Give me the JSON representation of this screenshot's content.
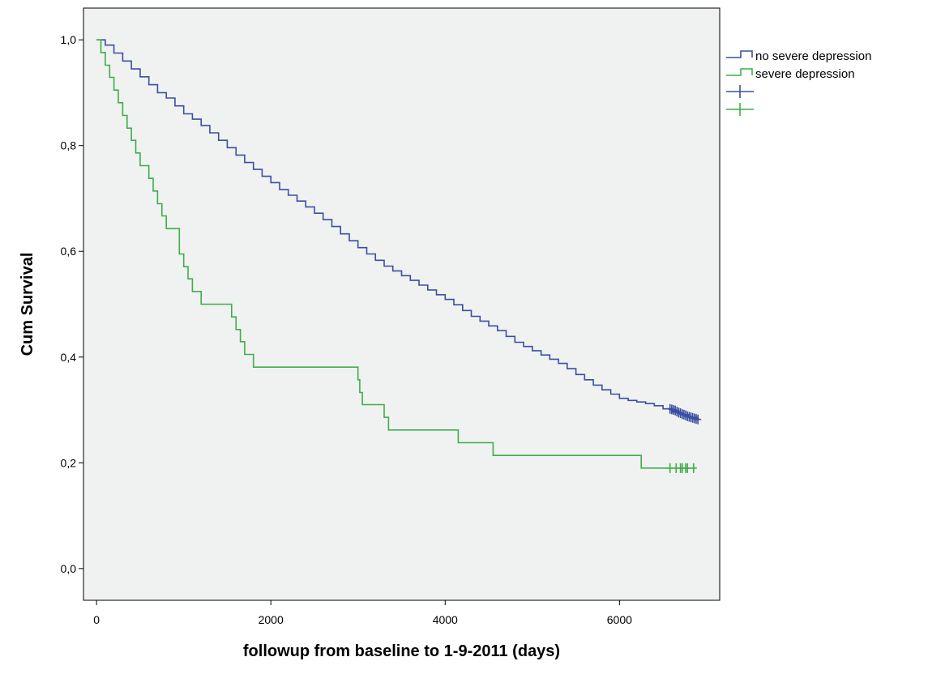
{
  "chart_data": {
    "type": "line",
    "subtype": "kaplan-meier step curves",
    "title": "",
    "xlabel": "followup from baseline to 1-9-2011 (days)",
    "ylabel": "Cum Survival",
    "xlim": [
      -150,
      7150
    ],
    "ylim": [
      -0.06,
      1.06
    ],
    "x_ticks": [
      0,
      2000,
      4000,
      6000
    ],
    "x_tick_labels": [
      "0",
      "2000",
      "4000",
      "6000"
    ],
    "y_ticks": [
      0.0,
      0.2,
      0.4,
      0.6,
      0.8,
      1.0
    ],
    "y_tick_labels": [
      "0,0",
      "0,2",
      "0,4",
      "0,6",
      "0,8",
      "1,0"
    ],
    "grid": false,
    "legend_position": "right, outside plot",
    "plot_background": "#f0f1f1",
    "series": [
      {
        "name": "no severe depression",
        "color": "#3a4fa3",
        "x": [
          0,
          100,
          200,
          300,
          400,
          500,
          600,
          700,
          800,
          900,
          1000,
          1100,
          1200,
          1300,
          1400,
          1500,
          1600,
          1700,
          1800,
          1900,
          2000,
          2100,
          2200,
          2300,
          2400,
          2500,
          2600,
          2700,
          2800,
          2900,
          3000,
          3100,
          3200,
          3300,
          3400,
          3500,
          3600,
          3700,
          3800,
          3900,
          4000,
          4100,
          4200,
          4300,
          4400,
          4500,
          4600,
          4700,
          4800,
          4900,
          5000,
          5100,
          5200,
          5300,
          5400,
          5500,
          5600,
          5700,
          5800,
          5900,
          6000,
          6100,
          6200,
          6300,
          6400,
          6500,
          6600,
          6700,
          6800,
          6900
        ],
        "y": [
          1.0,
          0.99,
          0.975,
          0.96,
          0.945,
          0.93,
          0.915,
          0.9,
          0.89,
          0.875,
          0.86,
          0.85,
          0.838,
          0.824,
          0.81,
          0.796,
          0.782,
          0.768,
          0.755,
          0.742,
          0.73,
          0.717,
          0.706,
          0.695,
          0.684,
          0.672,
          0.66,
          0.647,
          0.633,
          0.62,
          0.607,
          0.595,
          0.583,
          0.572,
          0.563,
          0.554,
          0.545,
          0.536,
          0.527,
          0.518,
          0.509,
          0.499,
          0.488,
          0.477,
          0.468,
          0.459,
          0.45,
          0.439,
          0.428,
          0.42,
          0.412,
          0.404,
          0.396,
          0.388,
          0.378,
          0.367,
          0.357,
          0.347,
          0.338,
          0.33,
          0.322,
          0.318,
          0.315,
          0.312,
          0.308,
          0.302,
          0.296,
          0.291,
          0.286,
          0.281
        ],
        "censor_marker": true
      },
      {
        "name": "severe depression",
        "color": "#3fae49",
        "x": [
          0,
          50,
          100,
          150,
          200,
          250,
          300,
          350,
          400,
          450,
          500,
          600,
          650,
          700,
          750,
          800,
          950,
          1000,
          1050,
          1100,
          1200,
          1550,
          1600,
          1650,
          1700,
          1800,
          2100,
          3000,
          3020,
          3050,
          3300,
          3350,
          3450,
          4150,
          4550,
          6250
        ],
        "y": [
          1.0,
          0.976,
          0.952,
          0.929,
          0.905,
          0.881,
          0.857,
          0.833,
          0.81,
          0.786,
          0.762,
          0.738,
          0.714,
          0.69,
          0.667,
          0.643,
          0.595,
          0.571,
          0.548,
          0.524,
          0.5,
          0.476,
          0.452,
          0.429,
          0.405,
          0.381,
          0.381,
          0.357,
          0.333,
          0.31,
          0.286,
          0.262,
          0.262,
          0.238,
          0.214,
          0.19
        ],
        "censor_marker": true
      }
    ],
    "censored_points": [
      {
        "series": "no severe depression",
        "x": [
          6580,
          6600,
          6620,
          6640,
          6660,
          6680,
          6700,
          6720,
          6740,
          6760,
          6780,
          6800,
          6820,
          6840,
          6860,
          6880,
          6900
        ],
        "y": [
          0.302,
          0.301,
          0.3,
          0.299,
          0.297,
          0.295,
          0.294,
          0.292,
          0.291,
          0.29,
          0.288,
          0.287,
          0.286,
          0.285,
          0.284,
          0.283,
          0.282
        ]
      },
      {
        "series": "severe depression",
        "x": [
          6580,
          6650,
          6700,
          6720,
          6760,
          6780,
          6850
        ],
        "y": [
          0.19,
          0.19,
          0.19,
          0.19,
          0.19,
          0.19,
          0.19
        ]
      }
    ],
    "legend": [
      {
        "label": "no severe depression",
        "swatch": "step-line",
        "color": "#3a4fa3"
      },
      {
        "label": "severe depression",
        "swatch": "step-line",
        "color": "#3fae49"
      },
      {
        "label": "",
        "swatch": "censor-mark",
        "color": "#3a4fa3"
      },
      {
        "label": "",
        "swatch": "censor-mark",
        "color": "#3fae49"
      }
    ]
  }
}
